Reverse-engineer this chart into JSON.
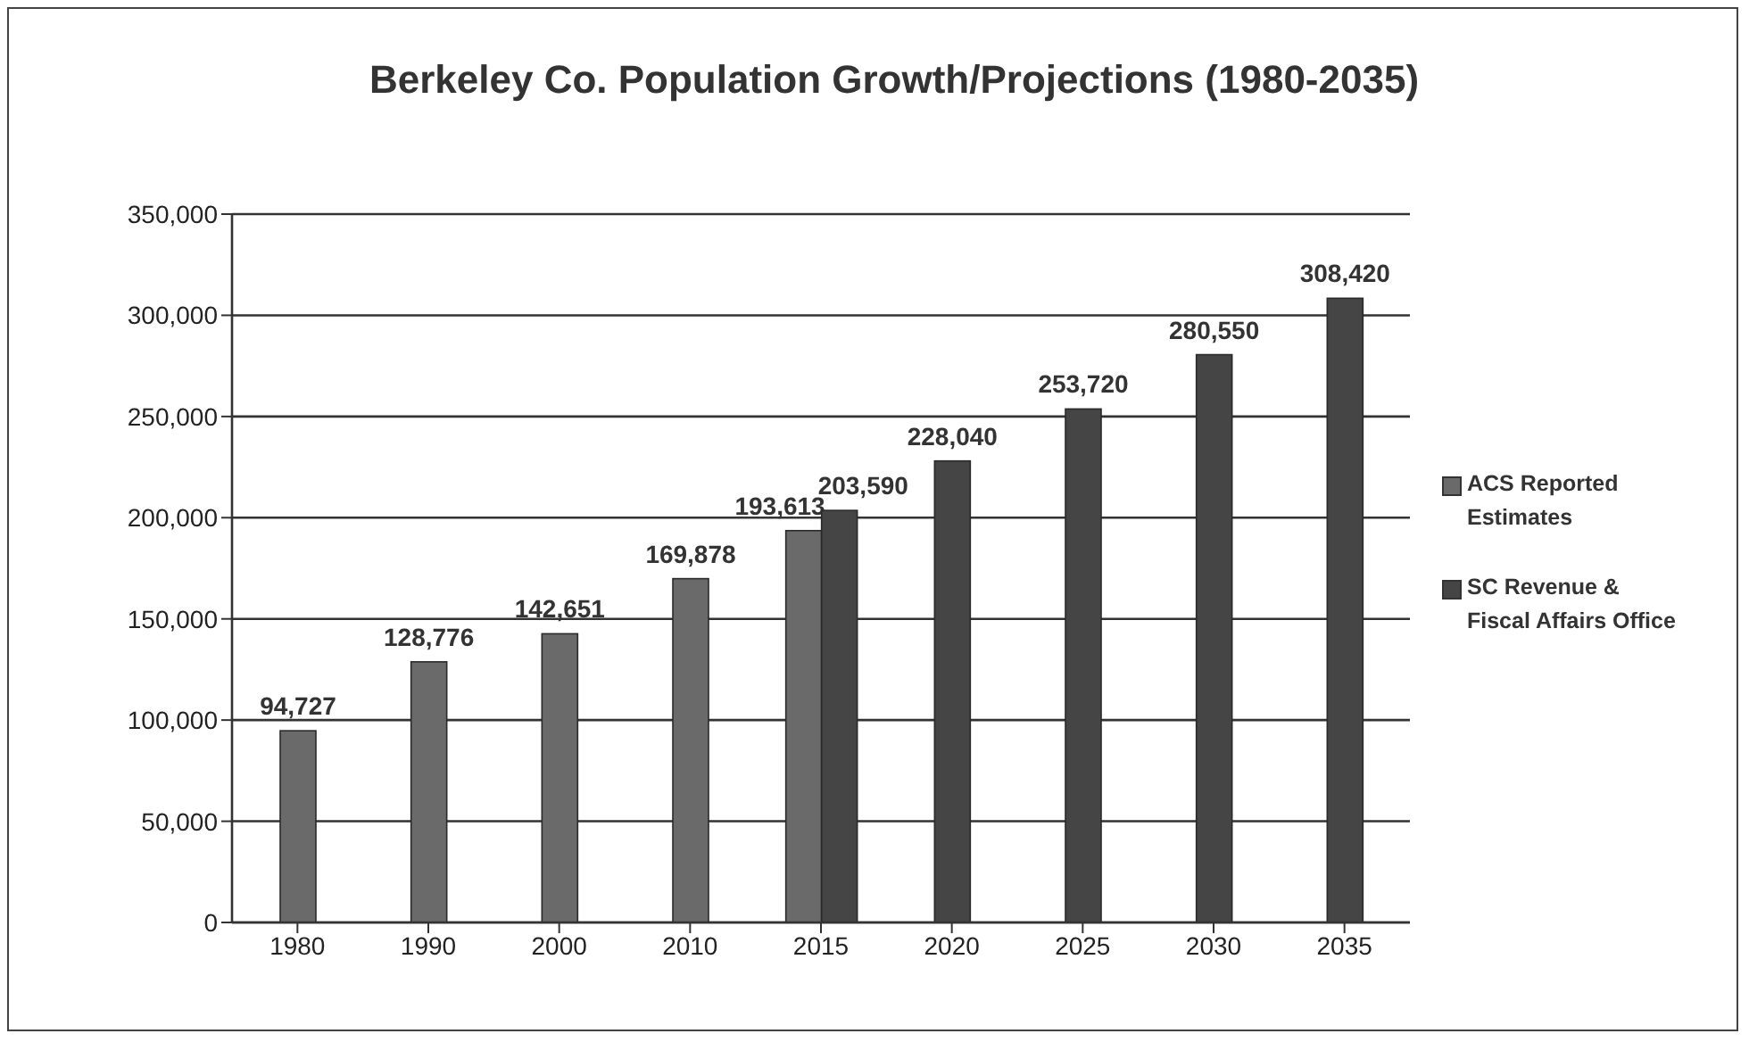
{
  "chart_data": {
    "type": "bar",
    "title": "Berkeley Co. Population Growth/Projections (1980-2035)",
    "categories": [
      "1980",
      "1990",
      "2000",
      "2010",
      "2015",
      "2020",
      "2025",
      "2030",
      "2035"
    ],
    "series": [
      {
        "name": "ACS Reported Estimates",
        "color": "#6a6a6a",
        "values": [
          94727,
          128776,
          142651,
          169878,
          193613,
          null,
          null,
          null,
          null
        ],
        "value_labels": [
          "94,727",
          "128,776",
          "142,651",
          "169,878",
          "193,613",
          null,
          null,
          null,
          null
        ]
      },
      {
        "name": "SC Revenue & Fiscal Affairs Office",
        "color": "#454545",
        "values": [
          null,
          null,
          null,
          null,
          203590,
          228040,
          253720,
          280550,
          308420
        ],
        "value_labels": [
          null,
          null,
          null,
          null,
          "203,590",
          "228,040",
          "253,720",
          "280,550",
          "308,420"
        ]
      }
    ],
    "ylim": [
      0,
      350000
    ],
    "yticks": [
      0,
      {
        "value": 50000,
        "label": "50,000"
      },
      {
        "value": 100000,
        "label": "100,000"
      },
      {
        "value": 150000,
        "label": "150,000"
      },
      {
        "value": 200000,
        "label": "200,000"
      },
      {
        "value": 250000,
        "label": "250,000"
      },
      {
        "value": 300000,
        "label": "300,000"
      },
      {
        "value": 350000,
        "label": "350,000"
      }
    ],
    "grid": "y",
    "legend": "right"
  }
}
